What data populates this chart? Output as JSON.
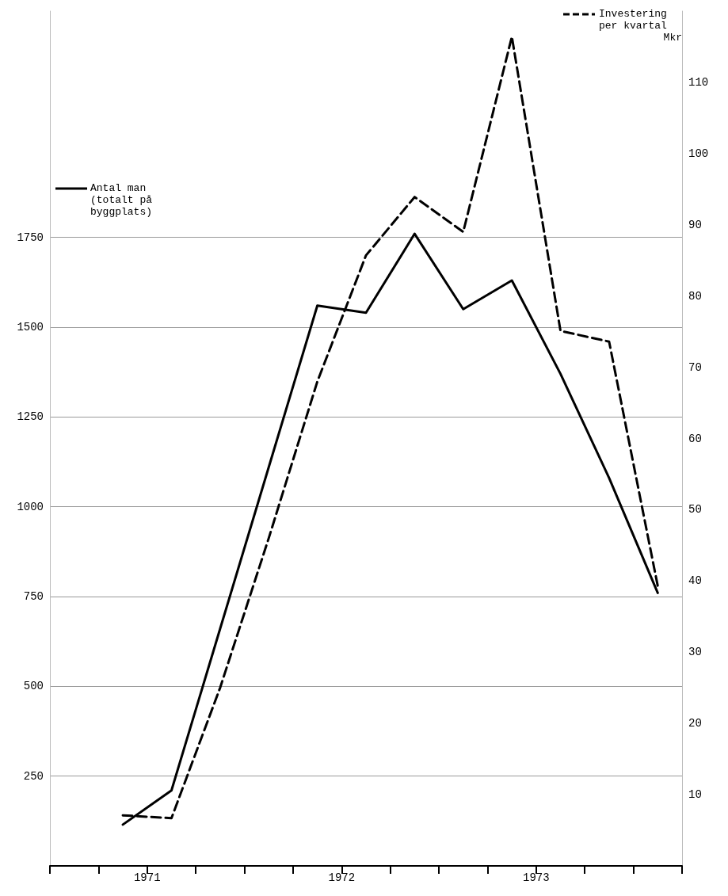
{
  "chart_data": {
    "type": "line",
    "y2label": "Mkr",
    "x": [
      1971.375,
      1971.625,
      1971.875,
      1972.125,
      1972.375,
      1972.625,
      1972.875,
      1973.125,
      1973.375,
      1973.625,
      1973.875,
      1974.125
    ],
    "xlim": [
      1971,
      1974.25
    ],
    "xticks": [
      {
        "value": 1971,
        "label": null
      },
      {
        "value": 1971.25,
        "label": null
      },
      {
        "value": 1971.5,
        "label": "1971"
      },
      {
        "value": 1971.75,
        "label": null
      },
      {
        "value": 1972,
        "label": null
      },
      {
        "value": 1972.25,
        "label": null
      },
      {
        "value": 1972.5,
        "label": "1972"
      },
      {
        "value": 1972.75,
        "label": null
      },
      {
        "value": 1973,
        "label": null
      },
      {
        "value": 1973.25,
        "label": null
      },
      {
        "value": 1973.5,
        "label": "1973"
      },
      {
        "value": 1973.75,
        "label": null
      },
      {
        "value": 1974,
        "label": null
      },
      {
        "value": 1974.25,
        "label": null
      }
    ],
    "ylim": [
      0,
      2380
    ],
    "yticks": [
      250,
      500,
      750,
      1000,
      1250,
      1500,
      1750
    ],
    "y2lim": [
      0,
      120
    ],
    "y2ticks": [
      10,
      20,
      30,
      40,
      50,
      60,
      70,
      80,
      90,
      100,
      110
    ],
    "grid": "y",
    "legend": "top",
    "marker": "none",
    "series": [
      {
        "name": "Antal man (totalt på byggplats)",
        "color": "#000000",
        "line_style": "solid",
        "values": [
          115,
          210,
          660,
          1110,
          1560,
          1540,
          1760,
          1550,
          1630,
          1370,
          1080,
          760
        ]
      },
      {
        "name": "Investering per kvartal",
        "color": "#000000",
        "line_style": "dashed",
        "axis": "y2",
        "values": [
          7.1,
          6.7,
          25,
          46,
          68,
          85.7,
          93.9,
          89,
          116.4,
          75.1,
          73.6,
          39.3
        ]
      }
    ]
  }
}
